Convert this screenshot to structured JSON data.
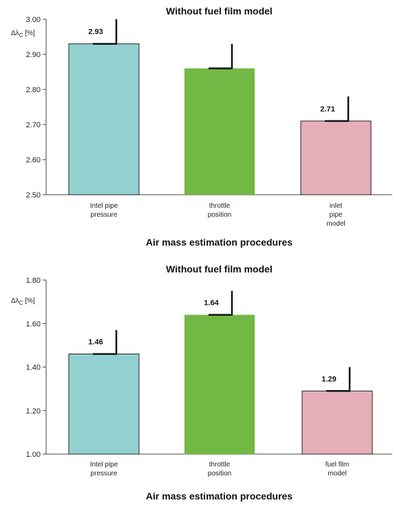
{
  "chart_data": [
    {
      "type": "bar",
      "title": "Without fuel film model",
      "ylabel": "Δλ",
      "ylabel_sub": "C",
      "ylabel_unit": " [%]",
      "xlabel": "Air mass estimation procedures",
      "ylim": [
        2.5,
        3.0
      ],
      "yticks": [
        "2.50",
        "2.60",
        "2.70",
        "2.80",
        "2.90",
        "3.00"
      ],
      "grid": false,
      "categories": [
        [
          "Intel pipe",
          "pressure"
        ],
        [
          "throttle",
          "position"
        ],
        [
          "inlet",
          "pipe",
          "model"
        ]
      ],
      "values": [
        2.93,
        2.86,
        2.71
      ],
      "error_top": [
        3.0,
        2.93,
        2.78
      ],
      "data_labels": [
        "2.93",
        "",
        "2.71"
      ],
      "colors": [
        "#93d1d0",
        "#72b844",
        "#e5aeb8"
      ],
      "outlined": [
        true,
        false,
        true
      ]
    },
    {
      "type": "bar",
      "title": "Without fuel film model",
      "ylabel": "Δλ",
      "ylabel_sub": "C",
      "ylabel_unit": " [%]",
      "xlabel": "Air mass estimation procedures",
      "ylim": [
        1.0,
        1.8
      ],
      "yticks": [
        "1.00",
        "1.20",
        "1.40",
        "1.60",
        "1.80"
      ],
      "grid": false,
      "categories": [
        [
          "Intel pipe",
          "pressure"
        ],
        [
          "throttle",
          "position"
        ],
        [
          "fuel film",
          "model"
        ]
      ],
      "values": [
        1.46,
        1.64,
        1.29
      ],
      "error_top": [
        1.57,
        1.75,
        1.4
      ],
      "data_labels": [
        "1.46",
        "1.64",
        "1.29"
      ],
      "colors": [
        "#93d1d0",
        "#72b844",
        "#e5aeb8"
      ],
      "outlined": [
        true,
        false,
        true
      ]
    }
  ]
}
